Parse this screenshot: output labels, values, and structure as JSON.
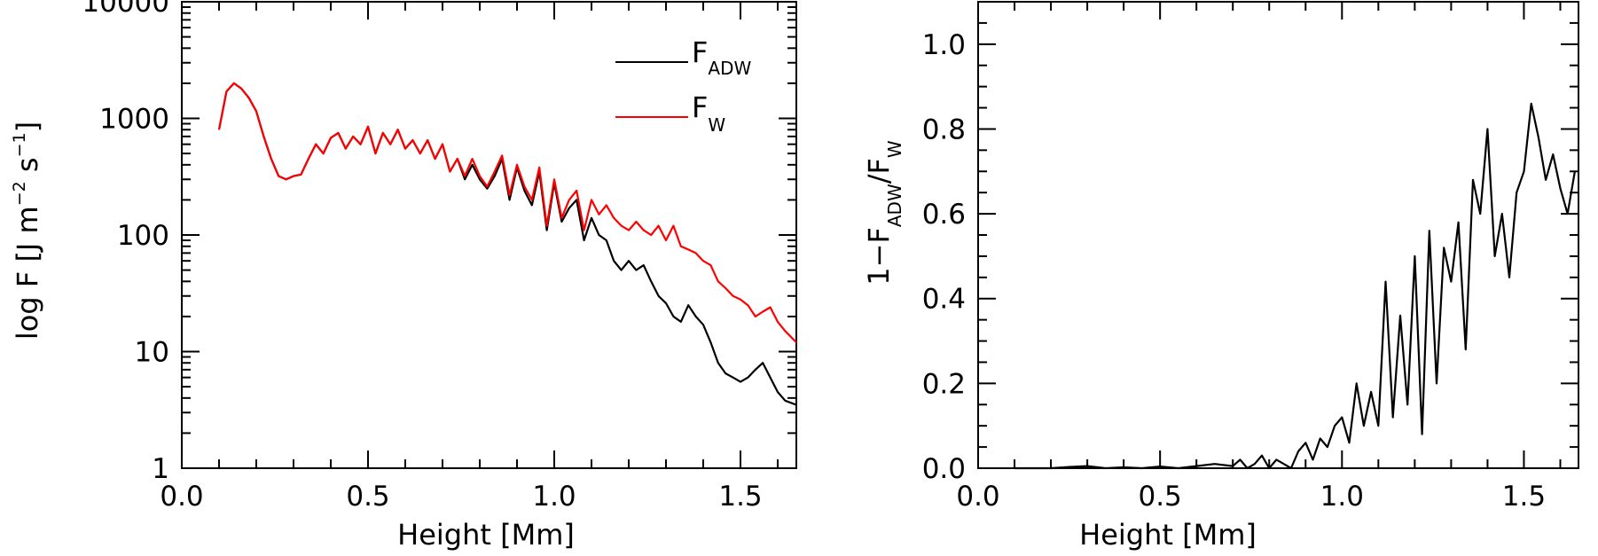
{
  "chart_data": [
    {
      "id": "flux",
      "type": "line",
      "title": "",
      "xlabel": "Height [Mm]",
      "ylabel_parts": {
        "main": "log F [J m",
        "sup1": "−2",
        "mid": " s",
        "sup2": "−1",
        "end": "]"
      },
      "xlim": [
        0,
        1.65
      ],
      "ylim": [
        1,
        10000
      ],
      "yscale": "log",
      "xticks": [
        0,
        0.5,
        1.0,
        1.5
      ],
      "xtick_labels": [
        "0.0",
        "0.5",
        "1.0",
        "1.5"
      ],
      "yticks": [
        1,
        10,
        100,
        1000,
        10000
      ],
      "ytick_labels": [
        "1",
        "10",
        "100",
        "1000",
        "10000"
      ],
      "legend_position": "top-right",
      "series": [
        {
          "name": "F_ADW",
          "legend_main": "F",
          "legend_sub": "ADW",
          "color": "#000000",
          "x": [
            0.1,
            0.12,
            0.14,
            0.16,
            0.18,
            0.2,
            0.22,
            0.24,
            0.26,
            0.28,
            0.3,
            0.32,
            0.34,
            0.36,
            0.38,
            0.4,
            0.42,
            0.44,
            0.46,
            0.48,
            0.5,
            0.52,
            0.54,
            0.56,
            0.58,
            0.6,
            0.62,
            0.64,
            0.66,
            0.68,
            0.7,
            0.72,
            0.74,
            0.76,
            0.78,
            0.8,
            0.82,
            0.84,
            0.86,
            0.88,
            0.9,
            0.92,
            0.94,
            0.96,
            0.98,
            1.0,
            1.02,
            1.04,
            1.06,
            1.08,
            1.1,
            1.12,
            1.14,
            1.16,
            1.18,
            1.2,
            1.22,
            1.24,
            1.26,
            1.28,
            1.3,
            1.32,
            1.34,
            1.36,
            1.38,
            1.4,
            1.42,
            1.44,
            1.46,
            1.48,
            1.5,
            1.52,
            1.54,
            1.56,
            1.58,
            1.6,
            1.62,
            1.65
          ],
          "values": [
            800,
            1700,
            2000,
            1800,
            1500,
            1150,
            700,
            450,
            320,
            300,
            320,
            330,
            450,
            600,
            500,
            680,
            750,
            550,
            700,
            600,
            850,
            500,
            750,
            600,
            800,
            550,
            650,
            500,
            650,
            450,
            600,
            350,
            450,
            300,
            400,
            300,
            250,
            320,
            450,
            200,
            380,
            240,
            180,
            350,
            110,
            280,
            130,
            170,
            200,
            90,
            140,
            100,
            90,
            60,
            50,
            60,
            50,
            55,
            40,
            30,
            26,
            20,
            18,
            25,
            20,
            17,
            12,
            8,
            6.5,
            6,
            5.5,
            6,
            7,
            8,
            6,
            4.5,
            3.8,
            3.5
          ]
        },
        {
          "name": "F_W",
          "legend_main": "F",
          "legend_sub": "W",
          "color": "#ff0000",
          "x": [
            0.1,
            0.12,
            0.14,
            0.16,
            0.18,
            0.2,
            0.22,
            0.24,
            0.26,
            0.28,
            0.3,
            0.32,
            0.34,
            0.36,
            0.38,
            0.4,
            0.42,
            0.44,
            0.46,
            0.48,
            0.5,
            0.52,
            0.54,
            0.56,
            0.58,
            0.6,
            0.62,
            0.64,
            0.66,
            0.68,
            0.7,
            0.72,
            0.74,
            0.76,
            0.78,
            0.8,
            0.82,
            0.84,
            0.86,
            0.88,
            0.9,
            0.92,
            0.94,
            0.96,
            0.98,
            1.0,
            1.02,
            1.04,
            1.06,
            1.08,
            1.1,
            1.12,
            1.14,
            1.16,
            1.18,
            1.2,
            1.22,
            1.24,
            1.26,
            1.28,
            1.3,
            1.32,
            1.34,
            1.36,
            1.38,
            1.4,
            1.42,
            1.44,
            1.46,
            1.48,
            1.5,
            1.52,
            1.54,
            1.56,
            1.58,
            1.6,
            1.62,
            1.65
          ],
          "values": [
            800,
            1700,
            2000,
            1800,
            1500,
            1150,
            700,
            450,
            320,
            300,
            320,
            330,
            450,
            600,
            500,
            680,
            750,
            550,
            700,
            600,
            850,
            500,
            750,
            600,
            800,
            550,
            650,
            500,
            650,
            450,
            600,
            350,
            450,
            320,
            450,
            320,
            260,
            350,
            480,
            220,
            400,
            260,
            200,
            380,
            120,
            300,
            140,
            200,
            240,
            110,
            200,
            150,
            180,
            140,
            120,
            110,
            130,
            110,
            100,
            120,
            90,
            120,
            80,
            75,
            70,
            60,
            55,
            40,
            35,
            30,
            28,
            25,
            20,
            22,
            24,
            18,
            15,
            12
          ]
        }
      ]
    },
    {
      "id": "ratio",
      "type": "line",
      "title": "",
      "xlabel": "Height [Mm]",
      "ylabel_parts": {
        "pre": "1−F",
        "sub1": "ADW",
        "slash": "/F",
        "sub2": "W"
      },
      "xlim": [
        0,
        1.65
      ],
      "ylim": [
        0,
        1.1
      ],
      "xticks": [
        0,
        0.5,
        1.0,
        1.5
      ],
      "xtick_labels": [
        "0.0",
        "0.5",
        "1.0",
        "1.5"
      ],
      "yticks": [
        0,
        0.2,
        0.4,
        0.6,
        0.8,
        1.0
      ],
      "ytick_labels": [
        "0.0",
        "0.2",
        "0.4",
        "0.6",
        "0.8",
        "1.0"
      ],
      "series": [
        {
          "name": "1-F_ADW/F_W",
          "color": "#000000",
          "x": [
            0.1,
            0.15,
            0.2,
            0.25,
            0.3,
            0.35,
            0.4,
            0.45,
            0.5,
            0.55,
            0.6,
            0.65,
            0.7,
            0.72,
            0.74,
            0.76,
            0.78,
            0.8,
            0.82,
            0.84,
            0.86,
            0.88,
            0.9,
            0.92,
            0.94,
            0.96,
            0.98,
            1.0,
            1.02,
            1.04,
            1.06,
            1.08,
            1.1,
            1.12,
            1.14,
            1.16,
            1.18,
            1.2,
            1.22,
            1.24,
            1.26,
            1.28,
            1.3,
            1.32,
            1.34,
            1.36,
            1.38,
            1.4,
            1.42,
            1.44,
            1.46,
            1.48,
            1.5,
            1.52,
            1.54,
            1.56,
            1.58,
            1.6,
            1.62,
            1.64
          ],
          "values": [
            0,
            0,
            0,
            0.003,
            0.005,
            0,
            0.002,
            0,
            0.004,
            0,
            0.005,
            0.01,
            0.005,
            0.02,
            0,
            0.01,
            0.03,
            0,
            0.02,
            0.01,
            0,
            0.04,
            0.06,
            0.02,
            0.07,
            0.05,
            0.1,
            0.12,
            0.06,
            0.2,
            0.1,
            0.18,
            0.1,
            0.44,
            0.12,
            0.36,
            0.15,
            0.5,
            0.08,
            0.56,
            0.2,
            0.52,
            0.44,
            0.58,
            0.28,
            0.68,
            0.6,
            0.8,
            0.5,
            0.6,
            0.45,
            0.65,
            0.7,
            0.86,
            0.78,
            0.68,
            0.74,
            0.66,
            0.6,
            0.7
          ]
        }
      ]
    }
  ]
}
